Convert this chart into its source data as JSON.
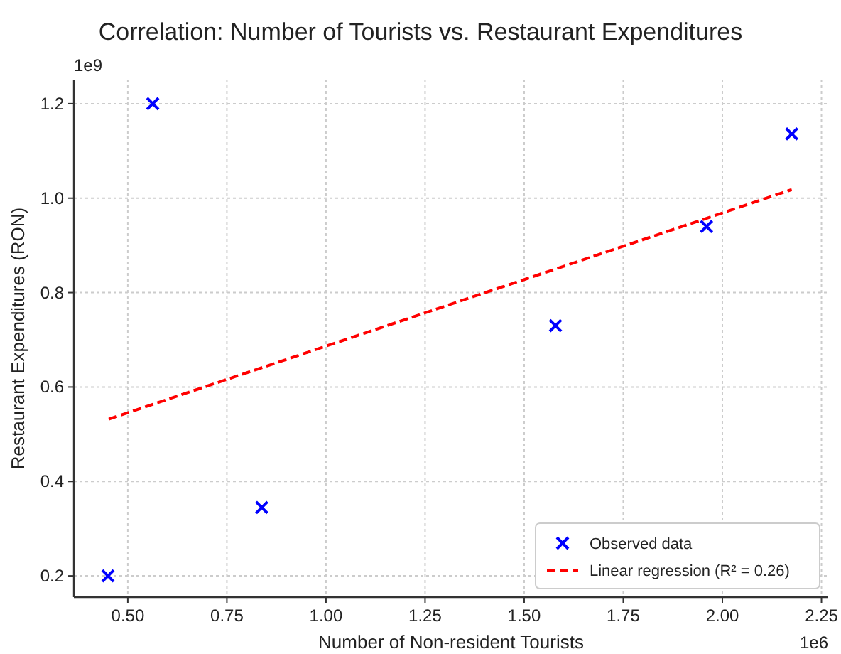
{
  "chart_data": {
    "type": "scatter",
    "title": "Correlation: Number of Tourists vs. Restaurant Expenditures",
    "xlabel": "Number of Non-resident Tourists",
    "ylabel": "Restaurant Expenditures (RON)",
    "annotations": [
      "1e6",
      "1e9"
    ],
    "xlim": [
      0.364,
      2.267
    ],
    "xticks": [
      {
        "value": 0.5,
        "label": "0.50"
      },
      {
        "value": 0.75,
        "label": "0.75"
      },
      {
        "value": 1,
        "label": "1.00"
      },
      {
        "value": 1.25,
        "label": "1.25"
      },
      {
        "value": 1.5,
        "label": "1.50"
      },
      {
        "value": 1.75,
        "label": "1.75"
      },
      {
        "value": 2,
        "label": "2.00"
      },
      {
        "value": 2.25,
        "label": "2.25"
      }
    ],
    "ylim": [
      0.155,
      1.251
    ],
    "yticks": [
      {
        "value": 0.2,
        "label": "0.2"
      },
      {
        "value": 0.4,
        "label": "0.4"
      },
      {
        "value": 0.6,
        "label": "0.6"
      },
      {
        "value": 0.8,
        "label": "0.8"
      },
      {
        "value": 1,
        "label": "1.0"
      },
      {
        "value": 1.2,
        "label": "1.2"
      }
    ],
    "grid": true,
    "legend": "bottom right",
    "series": [
      {
        "name": "Observed data",
        "color": "#0000ff",
        "marker": "cross",
        "x": [
          0.45,
          0.563,
          0.838,
          1.579,
          1.96,
          2.175
        ],
        "values": [
          0.2,
          1.2,
          0.345,
          0.73,
          0.94,
          1.136
        ]
      },
      {
        "name": "Linear regression (R² = 0.26)",
        "type": "line",
        "color": "#ff0000",
        "line_style": "dashed",
        "marker": "none",
        "x": [
          0.452,
          2.175
        ],
        "values": [
          0.532,
          1.018
        ]
      }
    ]
  }
}
